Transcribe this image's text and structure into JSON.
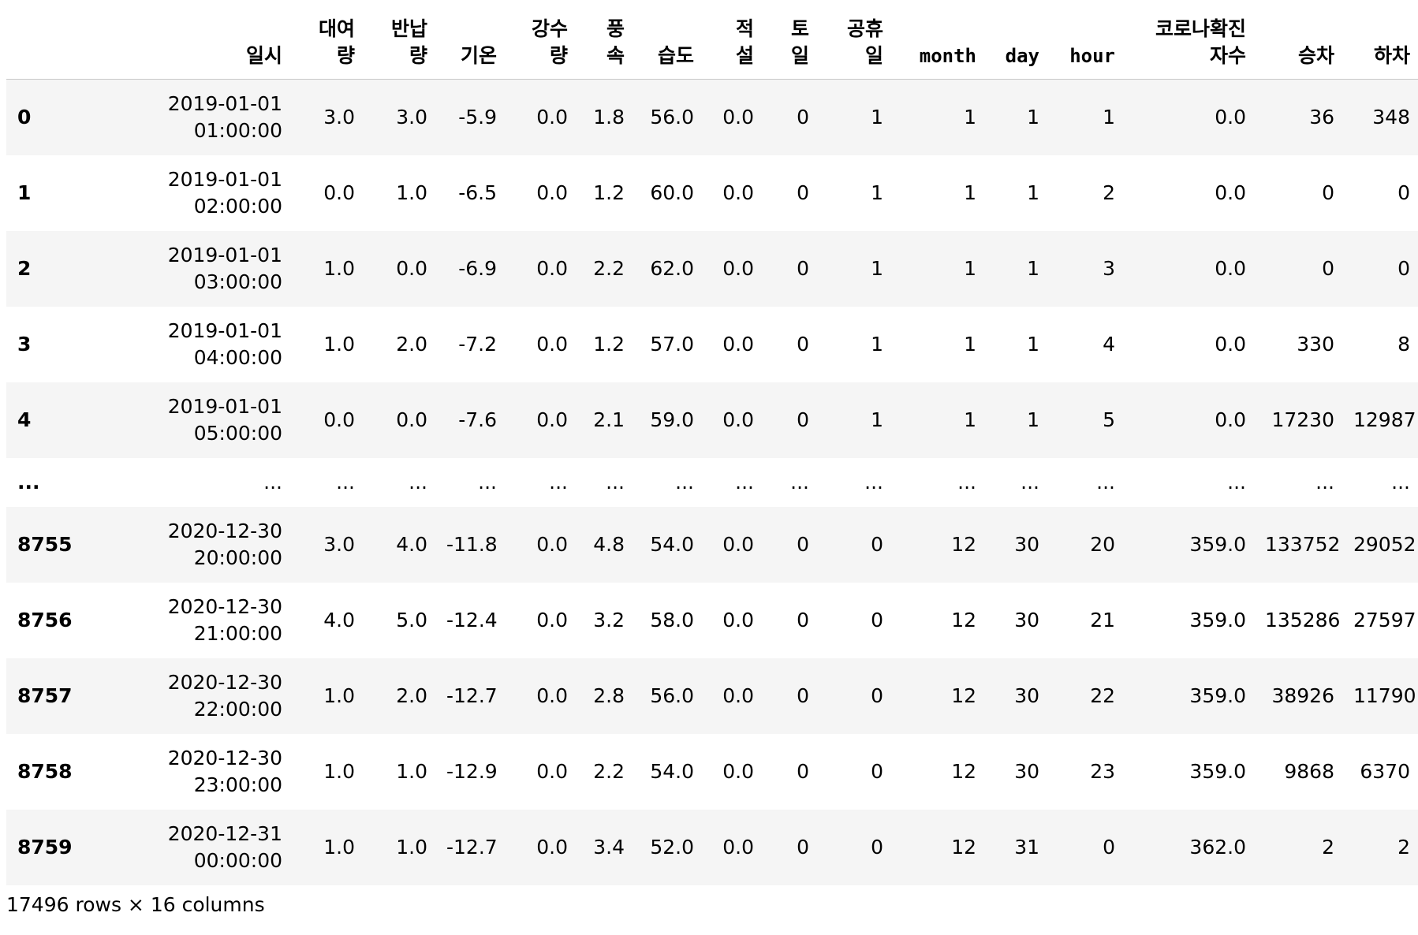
{
  "columns": {
    "index": "",
    "datetime": "일시",
    "rent": "대여량",
    "return": "반납량",
    "temp": "기온",
    "rain": "강수량",
    "wind": "풍속",
    "humidity": "습도",
    "snow": "적설",
    "saturday": "토일",
    "holiday": "공휴일",
    "month": "month",
    "day": "day",
    "hour": "hour",
    "covid": "코로나확진자수",
    "board": "승차",
    "alight": "하차"
  },
  "rows": [
    {
      "idx": "0",
      "date": "2019-01-01",
      "time": "01:00:00",
      "rent": "3.0",
      "ret": "3.0",
      "temp": "-5.9",
      "rain": "0.0",
      "wind": "1.8",
      "hum": "56.0",
      "snow": "0.0",
      "sat": "0",
      "hol": "1",
      "month": "1",
      "day": "1",
      "hour": "1",
      "covid": "0.0",
      "board": "36",
      "alight": "348"
    },
    {
      "idx": "1",
      "date": "2019-01-01",
      "time": "02:00:00",
      "rent": "0.0",
      "ret": "1.0",
      "temp": "-6.5",
      "rain": "0.0",
      "wind": "1.2",
      "hum": "60.0",
      "snow": "0.0",
      "sat": "0",
      "hol": "1",
      "month": "1",
      "day": "1",
      "hour": "2",
      "covid": "0.0",
      "board": "0",
      "alight": "0"
    },
    {
      "idx": "2",
      "date": "2019-01-01",
      "time": "03:00:00",
      "rent": "1.0",
      "ret": "0.0",
      "temp": "-6.9",
      "rain": "0.0",
      "wind": "2.2",
      "hum": "62.0",
      "snow": "0.0",
      "sat": "0",
      "hol": "1",
      "month": "1",
      "day": "1",
      "hour": "3",
      "covid": "0.0",
      "board": "0",
      "alight": "0"
    },
    {
      "idx": "3",
      "date": "2019-01-01",
      "time": "04:00:00",
      "rent": "1.0",
      "ret": "2.0",
      "temp": "-7.2",
      "rain": "0.0",
      "wind": "1.2",
      "hum": "57.0",
      "snow": "0.0",
      "sat": "0",
      "hol": "1",
      "month": "1",
      "day": "1",
      "hour": "4",
      "covid": "0.0",
      "board": "330",
      "alight": "8"
    },
    {
      "idx": "4",
      "date": "2019-01-01",
      "time": "05:00:00",
      "rent": "0.0",
      "ret": "0.0",
      "temp": "-7.6",
      "rain": "0.0",
      "wind": "2.1",
      "hum": "59.0",
      "snow": "0.0",
      "sat": "0",
      "hol": "1",
      "month": "1",
      "day": "1",
      "hour": "5",
      "covid": "0.0",
      "board": "17230",
      "alight": "12987"
    }
  ],
  "ellipsis": "...",
  "tail_rows": [
    {
      "idx": "8755",
      "date": "2020-12-30",
      "time": "20:00:00",
      "rent": "3.0",
      "ret": "4.0",
      "temp": "-11.8",
      "rain": "0.0",
      "wind": "4.8",
      "hum": "54.0",
      "snow": "0.0",
      "sat": "0",
      "hol": "0",
      "month": "12",
      "day": "30",
      "hour": "20",
      "covid": "359.0",
      "board": "133752",
      "alight": "29052"
    },
    {
      "idx": "8756",
      "date": "2020-12-30",
      "time": "21:00:00",
      "rent": "4.0",
      "ret": "5.0",
      "temp": "-12.4",
      "rain": "0.0",
      "wind": "3.2",
      "hum": "58.0",
      "snow": "0.0",
      "sat": "0",
      "hol": "0",
      "month": "12",
      "day": "30",
      "hour": "21",
      "covid": "359.0",
      "board": "135286",
      "alight": "27597"
    },
    {
      "idx": "8757",
      "date": "2020-12-30",
      "time": "22:00:00",
      "rent": "1.0",
      "ret": "2.0",
      "temp": "-12.7",
      "rain": "0.0",
      "wind": "2.8",
      "hum": "56.0",
      "snow": "0.0",
      "sat": "0",
      "hol": "0",
      "month": "12",
      "day": "30",
      "hour": "22",
      "covid": "359.0",
      "board": "38926",
      "alight": "11790"
    },
    {
      "idx": "8758",
      "date": "2020-12-30",
      "time": "23:00:00",
      "rent": "1.0",
      "ret": "1.0",
      "temp": "-12.9",
      "rain": "0.0",
      "wind": "2.2",
      "hum": "54.0",
      "snow": "0.0",
      "sat": "0",
      "hol": "0",
      "month": "12",
      "day": "30",
      "hour": "23",
      "covid": "359.0",
      "board": "9868",
      "alight": "6370"
    },
    {
      "idx": "8759",
      "date": "2020-12-31",
      "time": "00:00:00",
      "rent": "1.0",
      "ret": "1.0",
      "temp": "-12.7",
      "rain": "0.0",
      "wind": "3.4",
      "hum": "52.0",
      "snow": "0.0",
      "sat": "0",
      "hol": "0",
      "month": "12",
      "day": "31",
      "hour": "0",
      "covid": "362.0",
      "board": "2",
      "alight": "2"
    }
  ],
  "shape_text": "17496 rows × 16 columns"
}
